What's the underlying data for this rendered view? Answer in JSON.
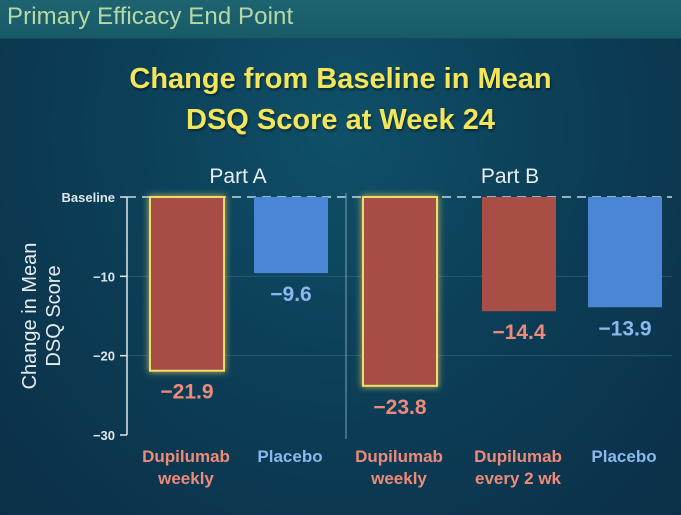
{
  "header": {
    "title": "Primary Efficacy End Point"
  },
  "colors": {
    "dupilumab": "#a84e45",
    "placebo": "#4a86d4",
    "dupilumab_text": "#ee8a7a",
    "placebo_text": "#8cb6ee",
    "highlight": "#e8e06a"
  },
  "chart_data": {
    "type": "bar",
    "title": "Change from Baseline in Mean DSQ Score at Week 24",
    "title_lines": [
      "Change from Baseline in Mean",
      "DSQ Score at Week 24"
    ],
    "ylabel": "Change in Mean DSQ Score",
    "ylabel_lines": [
      "Change in Mean",
      "DSQ Score"
    ],
    "xlabel": "",
    "ylim": [
      -30,
      0
    ],
    "yticks": [
      {
        "value": 0,
        "label": "Baseline"
      },
      {
        "value": -10,
        "label": "−10"
      },
      {
        "value": -20,
        "label": "−20"
      },
      {
        "value": -30,
        "label": "−30"
      }
    ],
    "groups": [
      {
        "name": "Part A"
      },
      {
        "name": "Part B"
      }
    ],
    "bars": [
      {
        "group": "Part A",
        "category": "Dupilumab weekly",
        "label_lines": [
          "Dupilumab",
          "weekly"
        ],
        "value": -21.9,
        "value_label": "−21.9",
        "treatment": "dupilumab",
        "highlighted": true
      },
      {
        "group": "Part A",
        "category": "Placebo",
        "label_lines": [
          "Placebo"
        ],
        "value": -9.6,
        "value_label": "−9.6",
        "treatment": "placebo",
        "highlighted": false
      },
      {
        "group": "Part B",
        "category": "Dupilumab weekly",
        "label_lines": [
          "Dupilumab",
          "weekly"
        ],
        "value": -23.8,
        "value_label": "−23.8",
        "treatment": "dupilumab",
        "highlighted": true
      },
      {
        "group": "Part B",
        "category": "Dupilumab every 2 wk",
        "label_lines": [
          "Dupilumab",
          "every 2 wk"
        ],
        "value": -14.4,
        "value_label": "−14.4",
        "treatment": "dupilumab",
        "highlighted": false
      },
      {
        "group": "Part B",
        "category": "Placebo",
        "label_lines": [
          "Placebo"
        ],
        "value": -13.9,
        "value_label": "−13.9",
        "treatment": "placebo",
        "highlighted": false
      }
    ],
    "baseline_line": "dashed",
    "grid": true,
    "legend": "none"
  }
}
